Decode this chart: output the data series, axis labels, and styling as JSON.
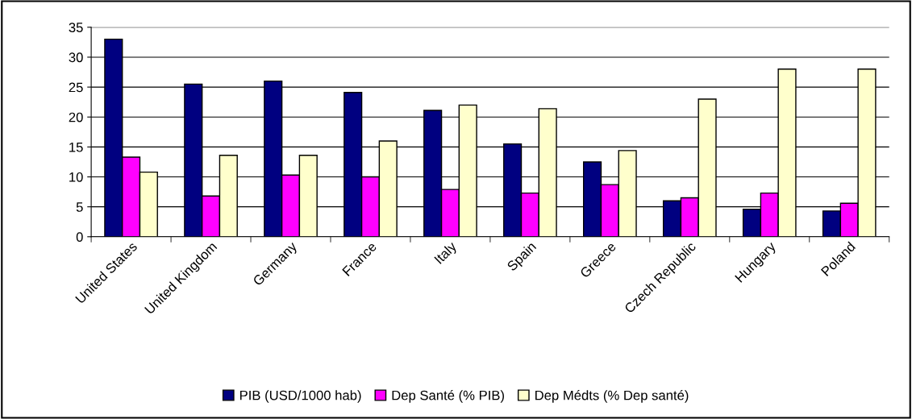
{
  "chart_data": {
    "type": "bar",
    "categories": [
      "United States",
      "United Kingdom",
      "Germany",
      "France",
      "Italy",
      "Spain",
      "Greece",
      "Czech Republic",
      "Hungary",
      "Poland"
    ],
    "series": [
      {
        "name": "PIB (USD/1000 hab)",
        "color": "#000080",
        "values": [
          33,
          25.5,
          26,
          24.1,
          21.1,
          15.5,
          12.5,
          6,
          4.6,
          4.3
        ]
      },
      {
        "name": "Dep Santé (% PIB)",
        "color": "#ff00ff",
        "values": [
          13.3,
          6.8,
          10.3,
          10,
          7.9,
          7.3,
          8.7,
          6.5,
          7.3,
          5.6
        ]
      },
      {
        "name": "Dep Médts (% Dep santé)",
        "color": "#ffffcc",
        "values": [
          10.8,
          13.6,
          13.6,
          16,
          22,
          21.4,
          14.4,
          23,
          28,
          28
        ]
      }
    ],
    "ylim": [
      0,
      35
    ],
    "yticks": [
      0,
      5,
      10,
      15,
      20,
      25,
      30,
      35
    ],
    "grid": "y",
    "legend": "bottom"
  }
}
